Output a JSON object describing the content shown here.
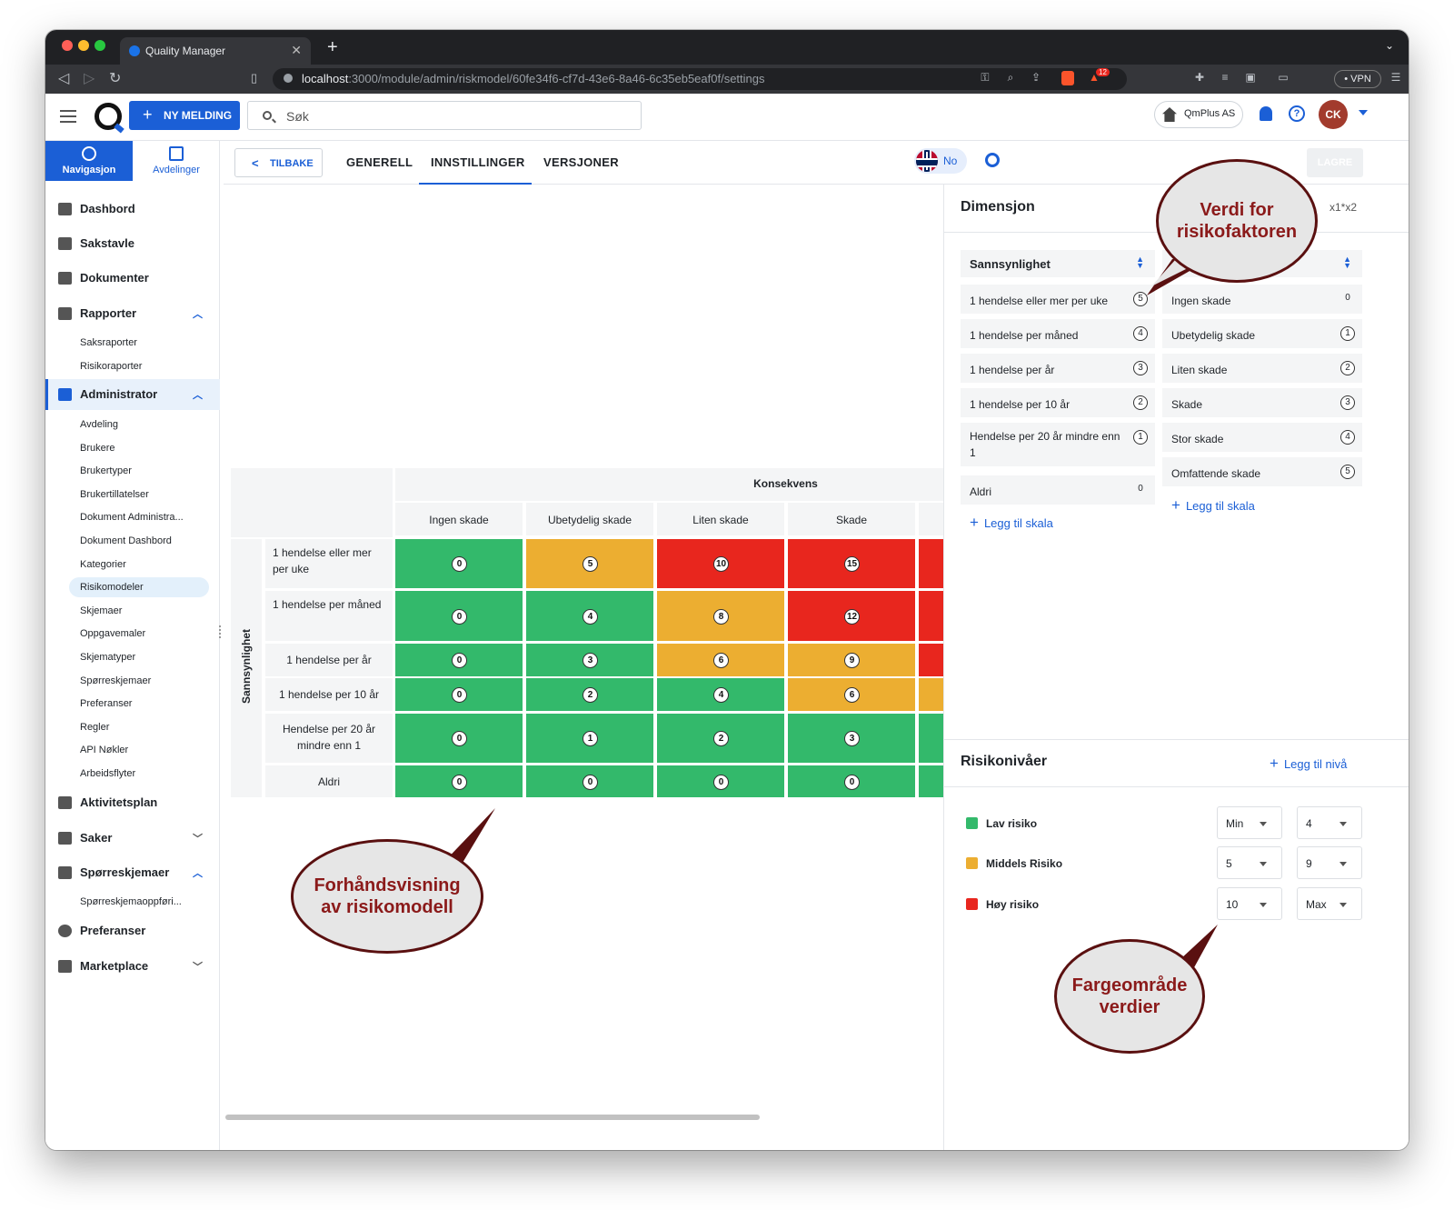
{
  "browser": {
    "tab_title": "Quality Manager",
    "url_host": "localhost",
    "url_path": ":3000/module/admin/riskmodel/60fe34f6-cf7d-43e6-8a46-6c35eb5eaf0f/settings",
    "vpn": "• VPN",
    "badge": "12"
  },
  "header": {
    "new_button": "NY MELDING",
    "search_placeholder": "Søk",
    "company": "QmPlus AS",
    "avatar": "CK"
  },
  "sidebar": {
    "tabs": [
      "Navigasjon",
      "Avdelinger"
    ],
    "items": {
      "dashbord": "Dashbord",
      "sakstavle": "Sakstavle",
      "dokumenter": "Dokumenter",
      "rapporter": "Rapporter",
      "administrator": "Administrator",
      "aktivitetsplan": "Aktivitetsplan",
      "saker": "Saker",
      "sporreskjemaer": "Spørreskjemaer",
      "preferanser": "Preferanser",
      "marketplace": "Marketplace"
    },
    "rapporter_sub": [
      "Saksraporter",
      "Risikoraporter"
    ],
    "admin_sub": [
      "Avdeling",
      "Brukere",
      "Brukertyper",
      "Brukertillatelser",
      "Dokument Administra...",
      "Dokument Dashbord",
      "Kategorier",
      "Risikomodeler",
      "Skjemaer",
      "Oppgavemaler",
      "Skjematyper",
      "Spørreskjemaer",
      "Preferanser",
      "Regler",
      "API Nøkler",
      "Arbeidsflyter"
    ],
    "sporreskjema_sub": [
      "Spørreskjemaoppføri..."
    ]
  },
  "page": {
    "back": "TILBAKE",
    "tabs": [
      "GENERELL",
      "INNSTILLINGER",
      "VERSJONER"
    ],
    "lang": "No",
    "save": "LAGRE"
  },
  "matrix": {
    "column_group": "Konsekvens",
    "row_group": "Sannsynlighet",
    "columns": [
      "Ingen skade",
      "Ubetydelig skade",
      "Liten skade",
      "Skade"
    ],
    "rows": [
      {
        "label": "1 hendelse eller mer per uke",
        "values": [
          0,
          5,
          10,
          15
        ]
      },
      {
        "label": "1 hendelse per måned",
        "values": [
          0,
          4,
          8,
          12
        ]
      },
      {
        "label": "1 hendelse per år",
        "values": [
          0,
          3,
          6,
          9
        ]
      },
      {
        "label": "1 hendelse per 10 år",
        "values": [
          0,
          2,
          4,
          6
        ]
      },
      {
        "label": "Hendelse per 20 år mindre enn 1",
        "values": [
          0,
          1,
          2,
          3
        ]
      },
      {
        "label": "Aldri",
        "values": [
          0,
          0,
          0,
          0
        ]
      }
    ],
    "colors": {
      "low": "#33b96b",
      "medium": "#ecae31",
      "high": "#e8261e"
    }
  },
  "dimension": {
    "title": "Dimensjon",
    "formula": "x1*x2",
    "left_select": "Sannsynlighet",
    "left": [
      {
        "label": "1 hendelse eller mer per uke",
        "value": "5"
      },
      {
        "label": "1 hendelse per måned",
        "value": "4"
      },
      {
        "label": "1 hendelse per år",
        "value": "3"
      },
      {
        "label": "1 hendelse per 10 år",
        "value": "2"
      },
      {
        "label": "Hendelse per 20 år mindre enn 1",
        "value": "1"
      },
      {
        "label": "Aldri",
        "value": "0"
      }
    ],
    "right": [
      {
        "label": "Ingen skade",
        "value": "0"
      },
      {
        "label": "Ubetydelig skade",
        "value": "1"
      },
      {
        "label": "Liten skade",
        "value": "2"
      },
      {
        "label": "Skade",
        "value": "3"
      },
      {
        "label": "Stor skade",
        "value": "4"
      },
      {
        "label": "Omfattende skade",
        "value": "5"
      }
    ],
    "add_scale": "Legg til skala"
  },
  "risk_levels": {
    "title": "Risikonivåer",
    "add": "Legg til nivå",
    "levels": [
      {
        "name": "Lav risiko",
        "color": "#33b96b",
        "min": "Min",
        "max": "4"
      },
      {
        "name": "Middels Risiko",
        "color": "#ecae31",
        "min": "5",
        "max": "9"
      },
      {
        "name": "Høy risiko",
        "color": "#e8261e",
        "min": "10",
        "max": "Max"
      }
    ]
  },
  "callouts": {
    "value": "Verdi for risikofaktoren",
    "preview": "Forhåndsvisning av risikomodell",
    "range": "Fargeområde verdier"
  }
}
